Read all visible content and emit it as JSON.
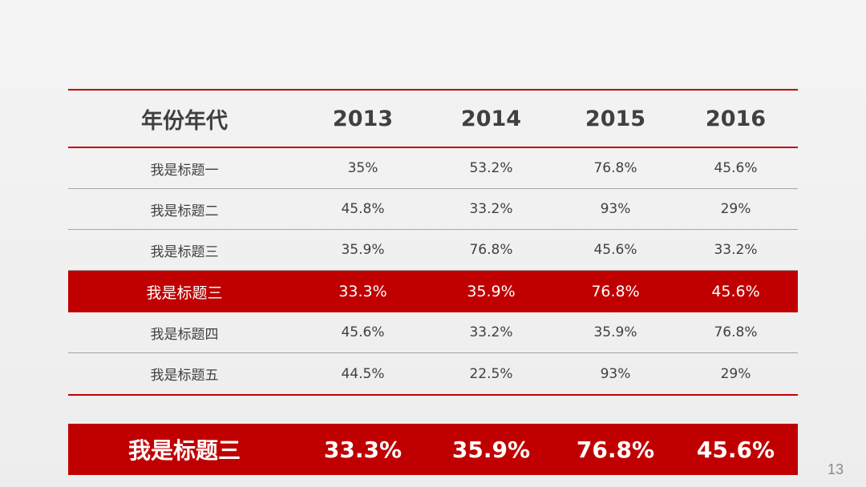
{
  "table": {
    "header": [
      "年份年代",
      "2013",
      "2014",
      "2015",
      "2016"
    ],
    "rows": [
      {
        "label": "我是标题一",
        "values": [
          "35%",
          "53.2%",
          "76.8%",
          "45.6%"
        ],
        "highlight": false
      },
      {
        "label": "我是标题二",
        "values": [
          "45.8%",
          "33.2%",
          "93%",
          "29%"
        ],
        "highlight": false
      },
      {
        "label": "我是标题三",
        "values": [
          "35.9%",
          "76.8%",
          "45.6%",
          "33.2%"
        ],
        "highlight": false
      },
      {
        "label": "我是标题三",
        "values": [
          "33.3%",
          "35.9%",
          "76.8%",
          "45.6%"
        ],
        "highlight": true
      },
      {
        "label": "我是标题四",
        "values": [
          "45.6%",
          "33.2%",
          "35.9%",
          "76.8%"
        ],
        "highlight": false
      },
      {
        "label": "我是标题五",
        "values": [
          "44.5%",
          "22.5%",
          "93%",
          "29%"
        ],
        "highlight": false
      }
    ]
  },
  "summary": {
    "label": "我是标题三",
    "values": [
      "33.3%",
      "35.9%",
      "76.8%",
      "45.6%"
    ]
  },
  "page_number": "13",
  "colors": {
    "accent": "#c00000",
    "text": "#404040",
    "background": "#f0f0f0"
  }
}
